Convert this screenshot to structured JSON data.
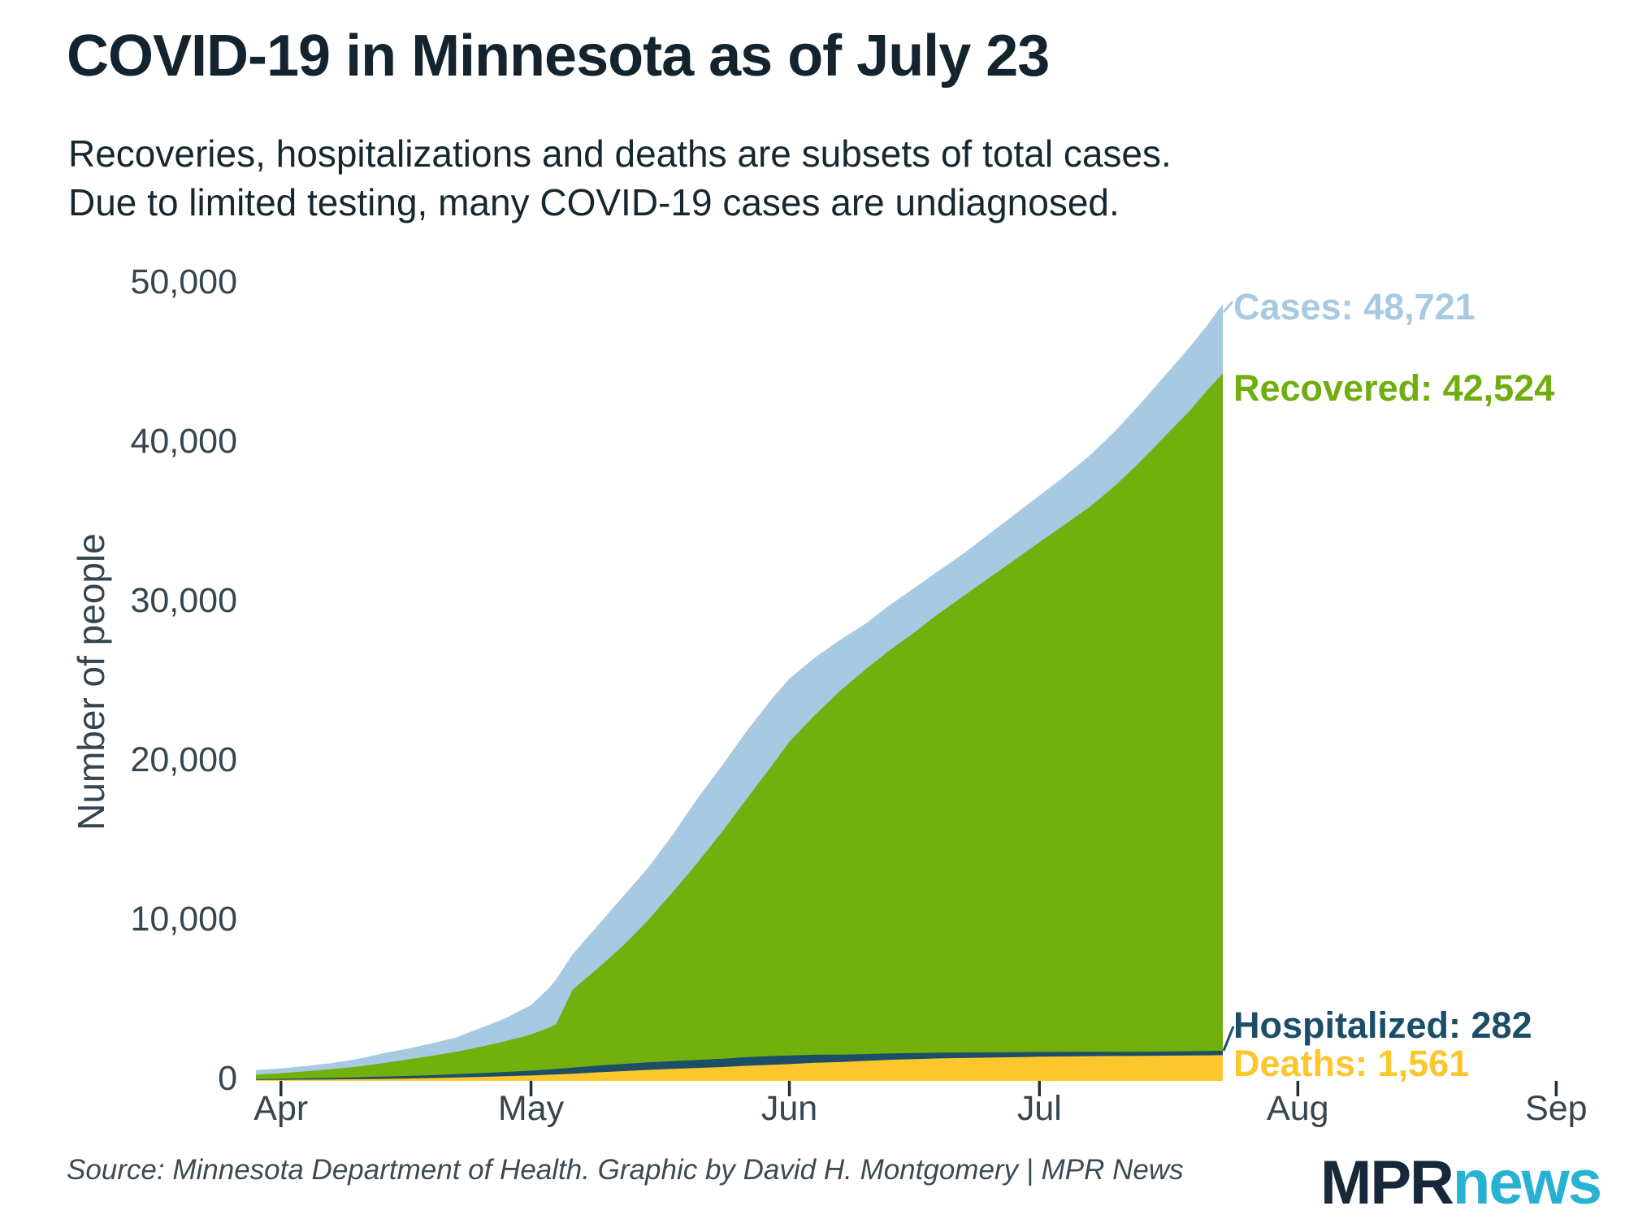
{
  "header": {
    "title": "COVID-19 in Minnesota as of July 23",
    "subtitle_line1": "Recoveries, hospitalizations and deaths are subsets of total cases.",
    "subtitle_line2": "Due to limited testing, many COVID-19 cases are undiagnosed."
  },
  "y_axis": {
    "label": "Number of people",
    "ticks": [
      "50,000",
      "40,000",
      "30,000",
      "20,000",
      "10,000",
      "0"
    ]
  },
  "x_axis": {
    "months": [
      "Apr",
      "May",
      "Jun",
      "Jul",
      "Aug",
      "Sep"
    ]
  },
  "annotations": {
    "cases": {
      "label": "Cases: 48,721",
      "color": "#a7c9e2"
    },
    "recovered": {
      "label": "Recovered: 42,524",
      "color": "#6fae0d"
    },
    "hospitalized": {
      "label": "Hospitalized: 282",
      "color": "#1c4e68"
    },
    "deaths": {
      "label": "Deaths: 1,561",
      "color": "#fcc62d"
    }
  },
  "footer": {
    "source": "Source: Minnesota Department of Health. Graphic by David H. Montgomery | MPR News",
    "logo_mpr": "MPR",
    "logo_news": "news"
  },
  "colors": {
    "cases_area": "#a7c9e2",
    "recovered_area": "#72b00e",
    "hospitalized_area": "#1c4e68",
    "deaths_area": "#fcc62d",
    "tick": "#222f38"
  },
  "chart_data": {
    "type": "area",
    "title": "COVID-19 in Minnesota as of July 23",
    "xlabel": "",
    "ylabel": "Number of people",
    "ylim": [
      0,
      50000
    ],
    "x_unit": "days since Mar 29 2020",
    "x_range_days": [
      0,
      116
    ],
    "month_tick_days": [
      3,
      33,
      64,
      94,
      125,
      156
    ],
    "month_tick_labels": [
      "Apr",
      "May",
      "Jun",
      "Jul",
      "Aug",
      "Sep"
    ],
    "y_tick_values": [
      50000,
      40000,
      30000,
      20000,
      10000,
      0
    ],
    "legend_position": "right-annotations",
    "grid": false,
    "stacking": "deaths, hospitalized and recovered stacked; cases drawn as backdrop since subsets of total",
    "days": [
      0,
      3,
      6,
      9,
      12,
      15,
      18,
      21,
      24,
      27,
      30,
      33,
      35,
      36,
      38,
      41,
      44,
      47,
      50,
      53,
      56,
      59,
      62,
      64,
      67,
      70,
      73,
      76,
      79,
      82,
      85,
      88,
      91,
      94,
      97,
      100,
      103,
      106,
      109,
      112,
      114,
      116
    ],
    "series": [
      {
        "name": "Cases",
        "final_label": "Cases: 48,721",
        "final_value": 48721,
        "values": [
          620,
          730,
          880,
          1060,
          1300,
          1650,
          1950,
          2290,
          2670,
          3280,
          3900,
          4700,
          5700,
          6300,
          7900,
          9700,
          11500,
          13300,
          15400,
          17700,
          19800,
          22000,
          24000,
          25200,
          26500,
          27600,
          28600,
          29800,
          30900,
          32000,
          33100,
          34300,
          35500,
          36700,
          37900,
          39200,
          40700,
          42400,
          44200,
          46000,
          47300,
          48721
        ]
      },
      {
        "name": "Recovered",
        "final_label": "Recovered: 42,524",
        "final_value": 42524,
        "values": [
          280,
          350,
          440,
          540,
          660,
          830,
          1020,
          1210,
          1410,
          1650,
          1940,
          2270,
          2600,
          2800,
          4900,
          6100,
          7400,
          8900,
          10600,
          12400,
          14300,
          16300,
          18300,
          19700,
          21300,
          22800,
          24100,
          25300,
          26400,
          27600,
          28700,
          29800,
          30900,
          32000,
          33100,
          34200,
          35500,
          37000,
          38600,
          40200,
          41400,
          42524
        ]
      },
      {
        "name": "Hospitalized",
        "final_label": "Hospitalized: 282",
        "final_value": 282,
        "values": [
          45,
          60,
          80,
          100,
          120,
          143,
          160,
          180,
          205,
          235,
          265,
          300,
          330,
          345,
          380,
          420,
          450,
          470,
          490,
          505,
          520,
          540,
          550,
          545,
          505,
          465,
          430,
          400,
          385,
          362,
          345,
          330,
          315,
          300,
          285,
          272,
          262,
          255,
          255,
          262,
          270,
          282
        ]
      },
      {
        "name": "Deaths",
        "final_label": "Deaths: 1,561",
        "final_value": 1561,
        "values": [
          10,
          17,
          24,
          34,
          50,
          70,
          94,
          121,
          160,
          200,
          244,
          286,
          330,
          350,
          400,
          486,
          558,
          640,
          700,
          760,
          818,
          900,
          960,
          1000,
          1080,
          1130,
          1200,
          1270,
          1310,
          1355,
          1385,
          1410,
          1435,
          1462,
          1482,
          1498,
          1509,
          1521,
          1533,
          1544,
          1552,
          1561
        ]
      }
    ]
  }
}
